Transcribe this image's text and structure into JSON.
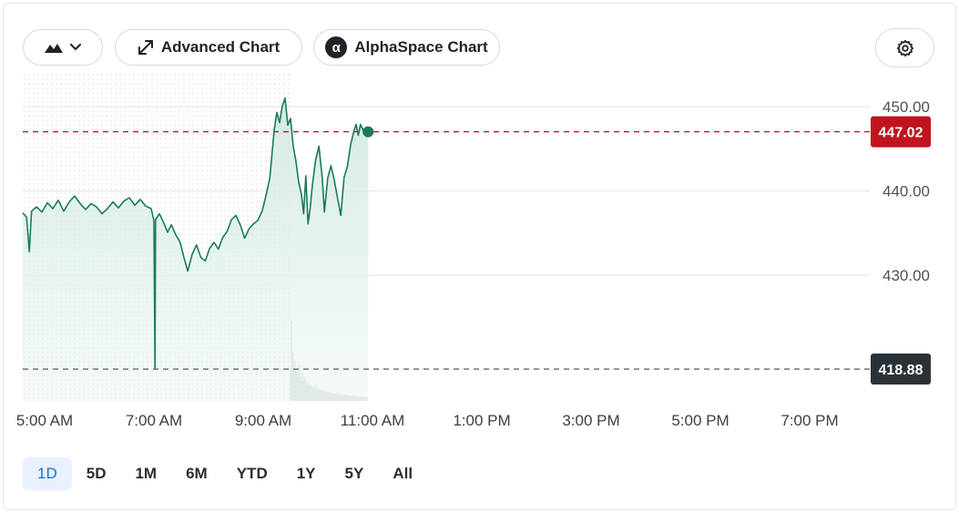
{
  "toolbar": {
    "chart_type_icon": "mountain-area-icon",
    "dropdown_icon": "chevron-down-icon",
    "advanced_chart_label": "Advanced Chart",
    "advanced_chart_icon": "expand-arrows-icon",
    "alphaspace_chart_label": "AlphaSpace Chart",
    "alphaspace_icon_glyph": "α",
    "settings_icon": "gear-icon"
  },
  "ranges": {
    "items": [
      "1D",
      "5D",
      "1M",
      "6M",
      "YTD",
      "1Y",
      "5Y",
      "All"
    ],
    "active": "1D"
  },
  "chart_data": {
    "type": "area",
    "x_tick_labels": [
      "5:00 AM",
      "7:00 AM",
      "9:00 AM",
      "11:00 AM",
      "1:00 PM",
      "3:00 PM",
      "5:00 PM",
      "7:00 PM"
    ],
    "x_tick_hours": [
      5,
      7,
      9,
      11,
      13,
      15,
      17,
      19
    ],
    "x_range_hours": [
      4.6,
      20.1
    ],
    "y_tick_values": [
      450.0,
      440.0,
      430.0
    ],
    "y_tick_labels": [
      "450.00",
      "440.00",
      "430.00"
    ],
    "ylim": [
      415.1,
      454.0
    ],
    "current_price": 447.02,
    "current_price_label": "447.02",
    "previous_close": 418.88,
    "previous_close_label": "418.88",
    "premarket_end_hour": 9.5,
    "colors": {
      "line": "#1a7a5e",
      "fill": "#dcefe8",
      "current_price": "#c1121f",
      "previous_close": "#2b3237",
      "grid": "#dfe2e5"
    },
    "series": [
      {
        "points": [
          [
            4.6,
            437.4
          ],
          [
            4.67,
            436.9
          ],
          [
            4.72,
            432.8
          ],
          [
            4.76,
            437.6
          ],
          [
            4.85,
            438.1
          ],
          [
            4.95,
            437.5
          ],
          [
            5.05,
            438.6
          ],
          [
            5.15,
            437.9
          ],
          [
            5.25,
            438.9
          ],
          [
            5.35,
            437.6
          ],
          [
            5.45,
            438.7
          ],
          [
            5.55,
            439.4
          ],
          [
            5.65,
            438.5
          ],
          [
            5.75,
            437.8
          ],
          [
            5.85,
            438.5
          ],
          [
            5.95,
            438.1
          ],
          [
            6.05,
            437.3
          ],
          [
            6.15,
            437.9
          ],
          [
            6.25,
            438.7
          ],
          [
            6.35,
            438.0
          ],
          [
            6.45,
            438.8
          ],
          [
            6.55,
            439.2
          ],
          [
            6.65,
            438.3
          ],
          [
            6.75,
            439.0
          ],
          [
            6.85,
            438.2
          ],
          [
            6.95,
            437.9
          ],
          [
            7.0,
            436.5
          ],
          [
            7.02,
            419.0
          ],
          [
            7.03,
            436.6
          ],
          [
            7.1,
            437.3
          ],
          [
            7.18,
            436.2
          ],
          [
            7.25,
            435.1
          ],
          [
            7.32,
            436.0
          ],
          [
            7.4,
            434.8
          ],
          [
            7.48,
            433.9
          ],
          [
            7.55,
            432.1
          ],
          [
            7.62,
            430.5
          ],
          [
            7.7,
            432.5
          ],
          [
            7.78,
            433.6
          ],
          [
            7.86,
            432.1
          ],
          [
            7.94,
            431.7
          ],
          [
            8.02,
            433.2
          ],
          [
            8.1,
            433.9
          ],
          [
            8.18,
            433.1
          ],
          [
            8.26,
            434.5
          ],
          [
            8.34,
            435.2
          ],
          [
            8.42,
            436.6
          ],
          [
            8.5,
            437.1
          ],
          [
            8.58,
            436.0
          ],
          [
            8.66,
            434.4
          ],
          [
            8.74,
            435.5
          ],
          [
            8.82,
            436.1
          ],
          [
            8.9,
            436.5
          ],
          [
            8.98,
            437.6
          ],
          [
            9.06,
            439.7
          ],
          [
            9.12,
            441.5
          ],
          [
            9.16,
            444.3
          ],
          [
            9.2,
            447.2
          ],
          [
            9.25,
            449.3
          ],
          [
            9.3,
            448.1
          ],
          [
            9.35,
            450.1
          ],
          [
            9.4,
            451.0
          ],
          [
            9.45,
            447.8
          ],
          [
            9.5,
            448.6
          ],
          [
            9.55,
            445.3
          ],
          [
            9.6,
            443.5
          ],
          [
            9.65,
            441.0
          ],
          [
            9.7,
            439.6
          ],
          [
            9.74,
            437.3
          ],
          [
            9.78,
            441.8
          ],
          [
            9.82,
            436.1
          ],
          [
            9.86,
            438.0
          ],
          [
            9.9,
            440.7
          ],
          [
            9.96,
            443.7
          ],
          [
            10.02,
            445.3
          ],
          [
            10.08,
            441.6
          ],
          [
            10.12,
            437.5
          ],
          [
            10.18,
            441.5
          ],
          [
            10.24,
            443.0
          ],
          [
            10.3,
            441.3
          ],
          [
            10.36,
            439.2
          ],
          [
            10.42,
            437.1
          ],
          [
            10.48,
            441.6
          ],
          [
            10.54,
            442.9
          ],
          [
            10.6,
            445.5
          ],
          [
            10.66,
            447.1
          ],
          [
            10.7,
            447.9
          ],
          [
            10.74,
            446.6
          ],
          [
            10.78,
            447.9
          ],
          [
            10.83,
            447.2
          ],
          [
            10.88,
            446.8
          ],
          [
            10.92,
            447.02
          ]
        ]
      }
    ],
    "volume_bars": [
      [
        9.5,
        0.35
      ],
      [
        9.52,
        1.0
      ],
      [
        9.54,
        0.6
      ],
      [
        9.56,
        0.45
      ],
      [
        9.58,
        0.5
      ],
      [
        9.6,
        0.4
      ],
      [
        9.62,
        0.35
      ],
      [
        9.64,
        0.3
      ],
      [
        9.66,
        0.45
      ],
      [
        9.68,
        0.3
      ],
      [
        9.7,
        0.25
      ],
      [
        9.72,
        0.35
      ],
      [
        9.74,
        0.25
      ],
      [
        9.76,
        0.3
      ],
      [
        9.78,
        0.2
      ],
      [
        9.8,
        0.25
      ],
      [
        9.82,
        0.2
      ],
      [
        9.84,
        0.22
      ],
      [
        9.86,
        0.18
      ],
      [
        9.88,
        0.2
      ],
      [
        9.9,
        0.16
      ],
      [
        9.92,
        0.18
      ],
      [
        9.94,
        0.15
      ],
      [
        9.96,
        0.2
      ],
      [
        9.98,
        0.14
      ],
      [
        10.0,
        0.16
      ],
      [
        10.02,
        0.13
      ],
      [
        10.04,
        0.15
      ],
      [
        10.06,
        0.12
      ],
      [
        10.08,
        0.14
      ],
      [
        10.1,
        0.12
      ],
      [
        10.12,
        0.13
      ],
      [
        10.14,
        0.11
      ],
      [
        10.16,
        0.12
      ],
      [
        10.18,
        0.1
      ],
      [
        10.2,
        0.12
      ],
      [
        10.22,
        0.1
      ],
      [
        10.24,
        0.11
      ],
      [
        10.26,
        0.09
      ],
      [
        10.28,
        0.1
      ],
      [
        10.3,
        0.09
      ],
      [
        10.32,
        0.1
      ],
      [
        10.34,
        0.08
      ],
      [
        10.36,
        0.1
      ],
      [
        10.38,
        0.08
      ],
      [
        10.4,
        0.09
      ],
      [
        10.42,
        0.08
      ],
      [
        10.44,
        0.09
      ],
      [
        10.46,
        0.07
      ],
      [
        10.48,
        0.08
      ],
      [
        10.5,
        0.07
      ],
      [
        10.52,
        0.08
      ],
      [
        10.54,
        0.07
      ],
      [
        10.56,
        0.08
      ],
      [
        10.58,
        0.06
      ],
      [
        10.6,
        0.07
      ],
      [
        10.62,
        0.06
      ],
      [
        10.64,
        0.07
      ],
      [
        10.66,
        0.06
      ],
      [
        10.68,
        0.07
      ],
      [
        10.7,
        0.06
      ],
      [
        10.72,
        0.06
      ],
      [
        10.74,
        0.05
      ],
      [
        10.76,
        0.06
      ],
      [
        10.78,
        0.05
      ],
      [
        10.8,
        0.06
      ],
      [
        10.82,
        0.05
      ],
      [
        10.84,
        0.05
      ],
      [
        10.86,
        0.05
      ],
      [
        10.88,
        0.05
      ],
      [
        10.9,
        0.05
      ]
    ]
  }
}
